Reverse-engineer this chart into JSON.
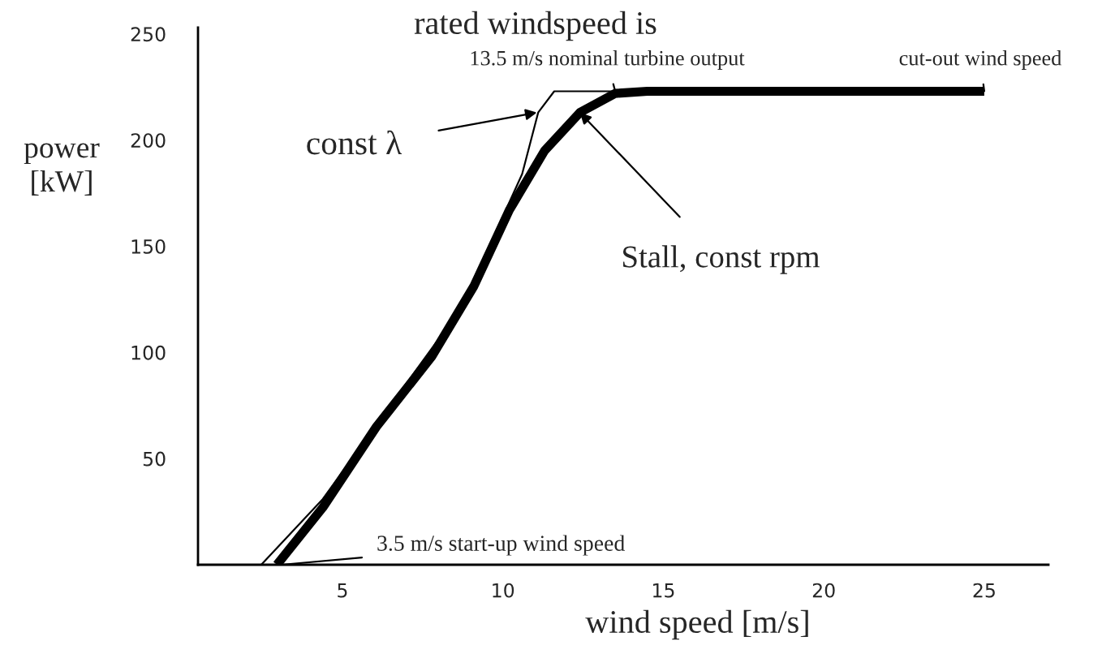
{
  "chart_data": {
    "type": "line",
    "xlabel": "wind speed [m/s]",
    "ylabel": "power\n[kW]",
    "xlim": [
      0.5,
      27
    ],
    "ylim": [
      0,
      253
    ],
    "xticks": [
      5,
      10,
      15,
      20,
      25
    ],
    "yticks": [
      50,
      100,
      150,
      200,
      250
    ],
    "grid": false,
    "marker": "none",
    "line_style": "solid",
    "series": [
      {
        "color": "#000000",
        "x": [
          2.47,
          4.39,
          6.4,
          8.08,
          9.1,
          10.6,
          11.1,
          11.6,
          13.5
        ],
        "values": [
          0,
          31,
          73,
          108,
          134,
          184,
          213,
          223,
          223
        ]
      },
      {
        "color": "#000000",
        "x": [
          2.96,
          4.39,
          6.06,
          7.78,
          9.09,
          10.2,
          11.3,
          12.4,
          13.5,
          14.5,
          25
        ],
        "values": [
          0,
          27,
          65,
          98,
          131,
          167,
          195,
          213,
          222,
          223,
          223
        ]
      }
    ],
    "annotations": [
      "rated windspeed is",
      {
        "text": "13.5 m/s nominal turbine output",
        "x": 13.5,
        "y": 223
      },
      {
        "text": "cut-out wind speed",
        "x": 25,
        "y": 223
      },
      {
        "text": "const λ",
        "x": 11.06,
        "y": 213
      },
      {
        "text": "Stall, const rpm",
        "x": 12.4,
        "y": 213
      },
      {
        "text": "3.5 m/s start-up wind speed",
        "x": 3.1,
        "y": 0
      }
    ]
  }
}
